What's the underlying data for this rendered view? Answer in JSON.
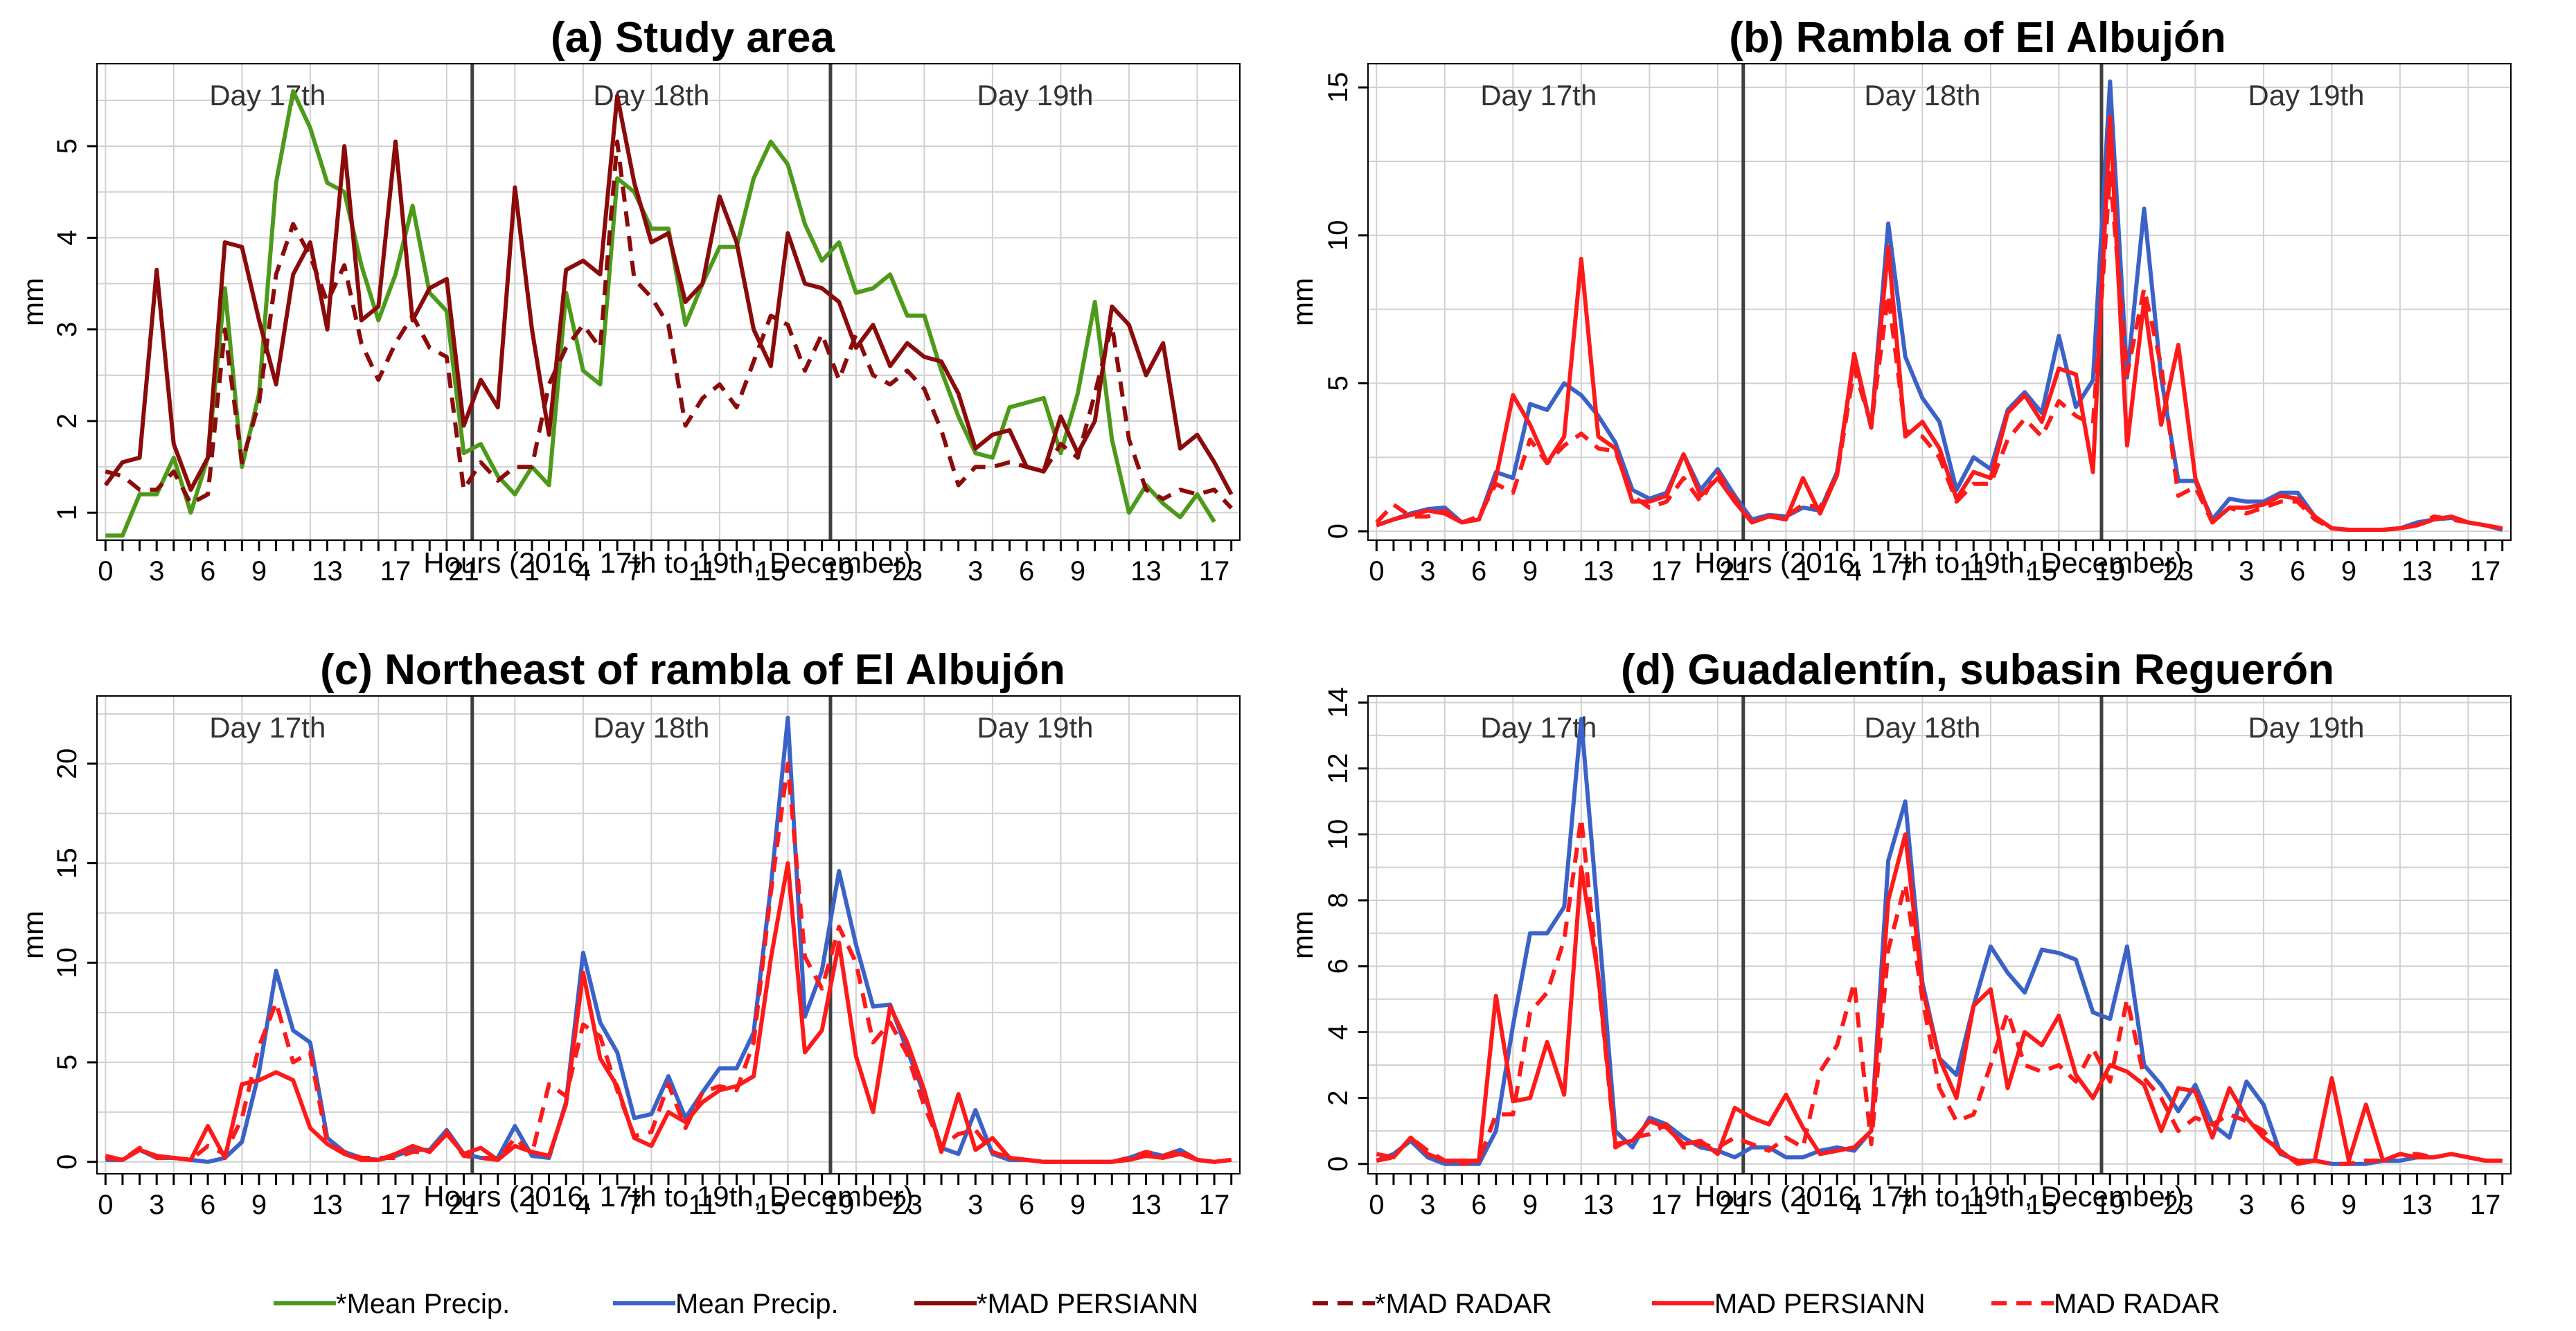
{
  "figure": {
    "legend": [
      {
        "label": "*Mean Precip.",
        "color": "#4d9a1a",
        "dash": "solid"
      },
      {
        "label": "Mean Precip.",
        "color": "#3a62c8",
        "dash": "solid"
      },
      {
        "label": "*MAD PERSIANN",
        "color": "#8b0a0a",
        "dash": "solid"
      },
      {
        "label": "*MAD RADAR",
        "color": "#8b0a0a",
        "dash": "dashed"
      },
      {
        "label": "MAD PERSIANN",
        "color": "#ff1a1a",
        "dash": "solid"
      },
      {
        "label": "MAD RADAR",
        "color": "#ff1a1a",
        "dash": "dashed"
      }
    ]
  },
  "chart_data": [
    {
      "type": "line",
      "title": "(a) Study area",
      "xlabel": "Hours (2016, 17th to 19th, December)",
      "ylabel": "mm",
      "xlim": [
        -0.5,
        66.5
      ],
      "ylim": [
        0.7,
        5.9
      ],
      "yticks": [
        1,
        2,
        3,
        4,
        5
      ],
      "x_tick_labels": [
        "0",
        "3",
        "6",
        "9",
        "13",
        "17",
        "21",
        "1",
        "4",
        "7",
        "11",
        "15",
        "19",
        "23",
        "3",
        "6",
        "9",
        "13",
        "17"
      ],
      "day_labels": [
        "Day 17th",
        "Day 18th",
        "Day 19th"
      ],
      "day_boundaries": [
        21.5,
        42.5
      ],
      "series": [
        {
          "name": "*Mean Precip.",
          "color": "#4d9a1a",
          "dash": "solid",
          "values": [
            0.75,
            0.75,
            1.2,
            1.2,
            1.6,
            1.0,
            1.6,
            3.45,
            1.5,
            2.3,
            4.6,
            5.6,
            5.2,
            4.6,
            4.5,
            3.7,
            3.1,
            3.6,
            4.35,
            3.4,
            3.2,
            1.65,
            1.75,
            1.4,
            1.2,
            1.5,
            1.3,
            3.4,
            2.55,
            2.4,
            4.65,
            4.5,
            4.1,
            4.1,
            3.05,
            3.5,
            3.9,
            3.9,
            4.65,
            5.05,
            4.8,
            4.15,
            3.75,
            3.95,
            3.4,
            3.45,
            3.6,
            3.15,
            3.15,
            2.55,
            2.05,
            1.65,
            1.6,
            2.15,
            2.2,
            2.25,
            1.65,
            2.3,
            3.3,
            1.8,
            1.0,
            1.3,
            1.1,
            0.95,
            1.2,
            0.9
          ]
        },
        {
          "name": "*MAD PERSIANN",
          "color": "#8b0a0a",
          "dash": "solid",
          "values": [
            1.3,
            1.55,
            1.6,
            3.65,
            1.75,
            1.25,
            1.6,
            3.95,
            3.9,
            3.1,
            2.4,
            3.6,
            3.95,
            3.0,
            5.0,
            3.1,
            3.25,
            5.05,
            3.1,
            3.45,
            3.55,
            1.95,
            2.45,
            2.15,
            4.55,
            3.0,
            1.85,
            3.65,
            3.75,
            3.6,
            5.55,
            4.6,
            3.95,
            4.05,
            3.3,
            3.5,
            4.45,
            3.95,
            3.0,
            2.6,
            4.05,
            3.5,
            3.45,
            3.3,
            2.8,
            3.05,
            2.6,
            2.85,
            2.7,
            2.65,
            2.3,
            1.7,
            1.85,
            1.9,
            1.5,
            1.45,
            2.05,
            1.65,
            2.0,
            3.25,
            3.05,
            2.5,
            2.85,
            1.7,
            1.85,
            1.55,
            1.2
          ]
        },
        {
          "name": "*MAD RADAR",
          "color": "#8b0a0a",
          "dash": "dashed",
          "values": [
            1.45,
            1.4,
            1.25,
            1.25,
            1.45,
            1.1,
            1.2,
            3.0,
            1.55,
            2.2,
            3.6,
            4.15,
            3.8,
            3.3,
            3.7,
            2.85,
            2.45,
            2.85,
            3.15,
            2.8,
            2.7,
            1.25,
            1.55,
            1.35,
            1.5,
            1.5,
            2.4,
            2.8,
            3.05,
            2.8,
            5.05,
            3.55,
            3.35,
            3.05,
            1.95,
            2.25,
            2.4,
            2.15,
            2.65,
            3.15,
            3.05,
            2.55,
            2.95,
            2.45,
            2.95,
            2.5,
            2.4,
            2.55,
            2.35,
            1.9,
            1.3,
            1.5,
            1.5,
            1.55,
            1.5,
            1.45,
            1.75,
            1.6,
            2.3,
            3.05,
            1.8,
            1.25,
            1.15,
            1.25,
            1.2,
            1.25,
            1.05
          ]
        }
      ]
    },
    {
      "type": "line",
      "title": "(b) Rambla of El Albujón",
      "xlabel": "Hours (2016, 17th to 19th, December)",
      "ylabel": "mm",
      "xlim": [
        -0.5,
        66.5
      ],
      "ylim": [
        -0.3,
        15.8
      ],
      "yticks": [
        0,
        5,
        10,
        15
      ],
      "x_tick_labels": [
        "0",
        "3",
        "6",
        "9",
        "13",
        "17",
        "21",
        "1",
        "4",
        "7",
        "11",
        "15",
        "19",
        "23",
        "3",
        "6",
        "9",
        "13",
        "17"
      ],
      "day_labels": [
        "Day 17th",
        "Day 18th",
        "Day 19th"
      ],
      "day_boundaries": [
        21.5,
        42.5
      ],
      "series": [
        {
          "name": "Mean Precip.",
          "color": "#3a62c8",
          "dash": "solid",
          "values": [
            0.2,
            0.4,
            0.6,
            0.75,
            0.8,
            0.3,
            0.4,
            2.0,
            1.8,
            4.3,
            4.1,
            5.0,
            4.6,
            3.9,
            3.0,
            1.4,
            1.1,
            1.3,
            2.6,
            1.4,
            2.1,
            1.2,
            0.4,
            0.55,
            0.5,
            0.8,
            0.7,
            2.0,
            5.9,
            3.5,
            10.4,
            5.9,
            4.5,
            3.7,
            1.4,
            2.5,
            2.1,
            4.1,
            4.7,
            4.0,
            6.6,
            4.2,
            5.1,
            15.2,
            5.2,
            10.9,
            5.2,
            1.7,
            1.7,
            0.4,
            1.1,
            1.0,
            1.0,
            1.3,
            1.3,
            0.5,
            0.1,
            0.05,
            0.05,
            0.05,
            0.1,
            0.3,
            0.4,
            0.45,
            0.3,
            0.2,
            0.05
          ]
        },
        {
          "name": "MAD PERSIANN",
          "color": "#ff1a1a",
          "dash": "solid",
          "values": [
            0.2,
            0.4,
            0.55,
            0.7,
            0.6,
            0.3,
            0.4,
            1.8,
            4.6,
            3.6,
            2.3,
            3.2,
            9.2,
            3.2,
            2.8,
            1.0,
            1.0,
            1.2,
            2.6,
            1.2,
            1.8,
            1.0,
            0.3,
            0.5,
            0.4,
            1.8,
            0.6,
            1.9,
            6.0,
            3.5,
            9.6,
            3.2,
            3.7,
            2.8,
            1.1,
            2.0,
            1.8,
            4.0,
            4.6,
            3.7,
            5.5,
            5.3,
            2.0,
            14.0,
            2.9,
            7.8,
            3.6,
            6.3,
            1.8,
            0.3,
            0.8,
            0.8,
            0.9,
            1.2,
            1.1,
            0.5,
            0.1,
            0.05,
            0.05,
            0.05,
            0.1,
            0.2,
            0.4,
            0.5,
            0.3,
            0.2,
            0.1
          ]
        },
        {
          "name": "MAD RADAR",
          "color": "#ff1a1a",
          "dash": "dashed",
          "values": [
            0.3,
            0.9,
            0.5,
            0.5,
            0.7,
            0.3,
            0.5,
            1.6,
            1.3,
            3.1,
            2.3,
            2.9,
            3.3,
            2.8,
            2.7,
            1.2,
            0.8,
            1.0,
            1.8,
            1.0,
            2.0,
            1.1,
            0.3,
            0.5,
            0.5,
            0.9,
            0.8,
            1.9,
            5.5,
            3.6,
            8.0,
            3.4,
            3.2,
            2.5,
            1.0,
            1.6,
            1.6,
            3.1,
            3.8,
            3.2,
            4.4,
            3.9,
            3.6,
            12.1,
            5.3,
            8.2,
            5.6,
            1.2,
            1.5,
            0.3,
            0.8,
            0.6,
            0.8,
            1.0,
            1.0,
            0.4,
            0.1,
            0.05,
            0.05,
            0.05,
            0.1,
            0.2,
            0.5,
            0.4,
            0.3,
            0.2,
            0.1
          ]
        }
      ]
    },
    {
      "type": "line",
      "title": "(c) Northeast of rambla of El Albujón",
      "xlabel": "Hours (2016, 17th to 19th, December)",
      "ylabel": "mm",
      "xlim": [
        -0.5,
        66.5
      ],
      "ylim": [
        -0.6,
        23.4
      ],
      "yticks": [
        0,
        5,
        10,
        15,
        20
      ],
      "x_tick_labels": [
        "0",
        "3",
        "6",
        "9",
        "13",
        "17",
        "21",
        "1",
        "4",
        "7",
        "11",
        "15",
        "19",
        "23",
        "3",
        "6",
        "9",
        "13",
        "17"
      ],
      "day_labels": [
        "Day 17th",
        "Day 18th",
        "Day 19th"
      ],
      "day_boundaries": [
        21.5,
        42.5
      ],
      "series": [
        {
          "name": "Mean Precip.",
          "color": "#3a62c8",
          "dash": "solid",
          "values": [
            0.1,
            0.1,
            0.6,
            0.2,
            0.2,
            0.1,
            0.0,
            0.2,
            1.0,
            4.5,
            9.6,
            6.6,
            6.0,
            1.2,
            0.5,
            0.2,
            0.1,
            0.3,
            0.6,
            0.6,
            1.6,
            0.4,
            0.2,
            0.2,
            1.8,
            0.3,
            0.2,
            3.0,
            10.5,
            7.0,
            5.5,
            2.2,
            2.4,
            4.3,
            2.2,
            3.5,
            4.7,
            4.7,
            6.5,
            13.8,
            22.3,
            7.3,
            9.6,
            14.6,
            10.9,
            7.8,
            7.9,
            5.6,
            3.4,
            0.7,
            0.4,
            2.6,
            0.4,
            0.1,
            0.1,
            0.0,
            0.0,
            0.0,
            0.0,
            0.0,
            0.2,
            0.5,
            0.3,
            0.6,
            0.1,
            0.0,
            0.1
          ]
        },
        {
          "name": "MAD PERSIANN",
          "color": "#ff1a1a",
          "dash": "solid",
          "values": [
            0.3,
            0.1,
            0.6,
            0.3,
            0.2,
            0.1,
            1.8,
            0.2,
            3.9,
            4.1,
            4.5,
            4.1,
            1.7,
            0.9,
            0.4,
            0.1,
            0.1,
            0.4,
            0.8,
            0.5,
            1.4,
            0.4,
            0.7,
            0.1,
            0.8,
            0.5,
            0.3,
            2.9,
            9.5,
            5.2,
            3.8,
            1.2,
            0.8,
            2.5,
            2.0,
            3.0,
            3.6,
            3.8,
            4.3,
            10.2,
            15.0,
            5.5,
            6.6,
            11.0,
            5.3,
            2.5,
            7.8,
            6.0,
            3.6,
            0.5,
            3.4,
            0.6,
            1.2,
            0.2,
            0.1,
            0.0,
            0.0,
            0.0,
            0.0,
            0.0,
            0.1,
            0.3,
            0.2,
            0.4,
            0.1,
            0.0,
            0.1
          ]
        },
        {
          "name": "MAD RADAR",
          "color": "#ff1a1a",
          "dash": "dashed",
          "values": [
            0.2,
            0.1,
            0.7,
            0.2,
            0.2,
            0.1,
            0.8,
            0.4,
            2.2,
            5.8,
            8.0,
            5.0,
            5.5,
            0.9,
            0.5,
            0.2,
            0.2,
            0.2,
            0.5,
            0.5,
            1.5,
            0.3,
            0.2,
            0.1,
            1.2,
            0.4,
            3.9,
            3.3,
            6.9,
            6.3,
            3.6,
            1.3,
            1.5,
            3.9,
            1.7,
            3.5,
            3.8,
            3.6,
            6.0,
            13.5,
            20.0,
            10.3,
            8.7,
            11.8,
            10.0,
            6.0,
            7.0,
            5.4,
            2.8,
            0.8,
            1.4,
            1.6,
            0.5,
            0.2,
            0.1,
            0.0,
            0.0,
            0.0,
            0.0,
            0.0,
            0.2,
            0.5,
            0.3,
            0.6,
            0.1,
            0.0,
            0.1
          ]
        }
      ]
    },
    {
      "type": "line",
      "title": "(d) Guadalentín, subasin Reguerón",
      "xlabel": "Hours (2016, 17th to 19th, December)",
      "ylabel": "mm",
      "xlim": [
        -0.5,
        66.5
      ],
      "ylim": [
        -0.3,
        14.2
      ],
      "yticks": [
        0,
        2,
        4,
        6,
        8,
        10,
        12,
        14
      ],
      "x_tick_labels": [
        "0",
        "3",
        "6",
        "9",
        "13",
        "17",
        "21",
        "1",
        "4",
        "7",
        "11",
        "15",
        "19",
        "23",
        "3",
        "6",
        "9",
        "13",
        "17"
      ],
      "day_labels": [
        "Day 17th",
        "Day 18th",
        "Day 19th"
      ],
      "day_boundaries": [
        21.5,
        42.5
      ],
      "series": [
        {
          "name": "Mean Precip.",
          "color": "#3a62c8",
          "dash": "solid",
          "values": [
            0.1,
            0.3,
            0.7,
            0.2,
            0.0,
            0.0,
            0.0,
            1.0,
            4.2,
            7.0,
            7.0,
            7.8,
            13.5,
            7.4,
            1.0,
            0.5,
            1.4,
            1.2,
            0.8,
            0.5,
            0.4,
            0.2,
            0.5,
            0.5,
            0.2,
            0.2,
            0.4,
            0.5,
            0.4,
            1.0,
            9.2,
            11.0,
            5.5,
            3.2,
            2.7,
            4.8,
            6.6,
            5.8,
            5.2,
            6.5,
            6.4,
            6.2,
            4.6,
            4.4,
            6.6,
            3.0,
            2.4,
            1.6,
            2.4,
            1.2,
            0.8,
            2.5,
            1.8,
            0.3,
            0.1,
            0.1,
            0.0,
            0.0,
            0.0,
            0.1,
            0.1,
            0.2,
            0.2,
            0.3,
            0.2,
            0.1,
            0.1
          ]
        },
        {
          "name": "MAD PERSIANN",
          "color": "#ff1a1a",
          "dash": "solid",
          "values": [
            0.3,
            0.2,
            0.8,
            0.3,
            0.1,
            0.1,
            0.1,
            5.1,
            1.9,
            2.0,
            3.7,
            2.1,
            9.0,
            5.7,
            0.6,
            0.7,
            1.3,
            1.1,
            0.6,
            0.7,
            0.3,
            1.7,
            1.4,
            1.2,
            2.1,
            1.1,
            0.3,
            0.4,
            0.5,
            1.0,
            8.0,
            10.0,
            5.3,
            3.2,
            2.0,
            4.8,
            5.3,
            2.3,
            4.0,
            3.6,
            4.5,
            2.7,
            2.0,
            3.0,
            2.8,
            2.4,
            1.0,
            2.3,
            2.2,
            0.8,
            2.3,
            1.4,
            0.8,
            0.4,
            0.0,
            0.1,
            2.6,
            0.1,
            1.8,
            0.1,
            0.3,
            0.2,
            0.2,
            0.3,
            0.2,
            0.1,
            0.1
          ]
        },
        {
          "name": "MAD RADAR",
          "color": "#ff1a1a",
          "dash": "dashed",
          "values": [
            0.1,
            0.2,
            0.8,
            0.4,
            0.1,
            0.0,
            0.1,
            1.5,
            1.5,
            4.6,
            5.2,
            6.8,
            10.5,
            5.6,
            0.5,
            0.8,
            0.9,
            1.2,
            0.5,
            0.6,
            0.5,
            0.8,
            0.6,
            0.4,
            0.8,
            0.5,
            2.8,
            3.6,
            5.5,
            0.6,
            6.5,
            8.5,
            5.0,
            2.3,
            1.3,
            1.5,
            3.0,
            4.6,
            3.0,
            2.8,
            3.0,
            2.5,
            3.5,
            2.5,
            5.0,
            2.6,
            2.0,
            1.0,
            1.4,
            1.2,
            1.5,
            1.3,
            1.0,
            0.3,
            0.1,
            0.1,
            0.0,
            0.0,
            0.1,
            0.1,
            0.3,
            0.3,
            0.2,
            0.3,
            0.2,
            0.1,
            0.1
          ]
        }
      ]
    }
  ]
}
